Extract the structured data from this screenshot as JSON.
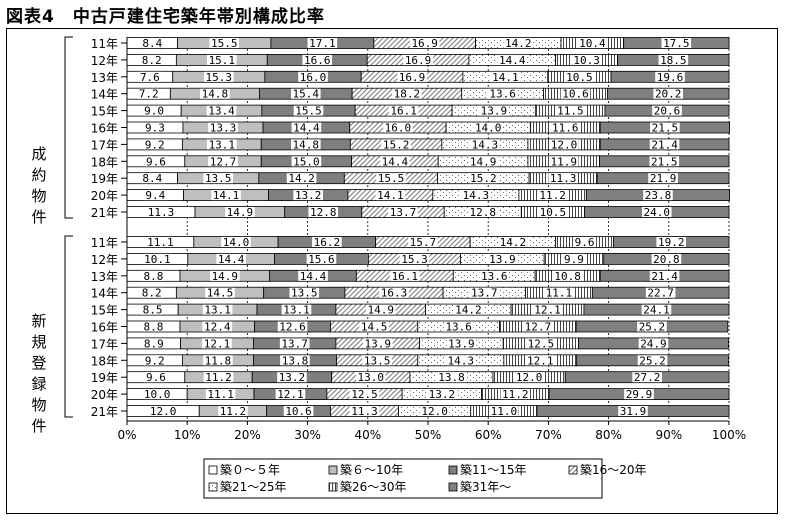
{
  "title": "図表4　中古戸建住宅築年帯別構成比率",
  "chart_data": {
    "type": "bar",
    "stacked": true,
    "orientation": "horizontal",
    "title": "図表4　中古戸建住宅築年帯別構成比率",
    "xlim": [
      0,
      100
    ],
    "x_ticks": [
      "0%",
      "10%",
      "20%",
      "30%",
      "40%",
      "50%",
      "60%",
      "70%",
      "80%",
      "90%",
      "100%"
    ],
    "series_names": [
      "築０～５年",
      "築６～10年",
      "築11～15年",
      "築16～20年",
      "築21～25年",
      "築26～30年",
      "築31年～"
    ],
    "groups": [
      {
        "label": "成約物件",
        "label_lines": [
          "成約",
          "物件"
        ],
        "rows": [
          {
            "year": "11年",
            "values": [
              8.4,
              15.5,
              17.1,
              16.9,
              14.2,
              10.4,
              17.5
            ]
          },
          {
            "year": "12年",
            "values": [
              8.2,
              15.1,
              16.6,
              16.9,
              14.4,
              10.3,
              18.5
            ]
          },
          {
            "year": "13年",
            "values": [
              7.6,
              15.3,
              16.0,
              16.9,
              14.1,
              10.5,
              19.6
            ]
          },
          {
            "year": "14年",
            "values": [
              7.2,
              14.8,
              15.4,
              18.2,
              13.6,
              10.6,
              20.2
            ]
          },
          {
            "year": "15年",
            "values": [
              9.0,
              13.4,
              15.5,
              16.1,
              13.9,
              11.5,
              20.6
            ]
          },
          {
            "year": "16年",
            "values": [
              9.3,
              13.3,
              14.4,
              16.0,
              14.0,
              11.6,
              21.5
            ]
          },
          {
            "year": "17年",
            "values": [
              9.2,
              13.1,
              14.8,
              15.2,
              14.3,
              12.0,
              21.4
            ]
          },
          {
            "year": "18年",
            "values": [
              9.6,
              12.7,
              15.0,
              14.4,
              14.9,
              11.9,
              21.5
            ]
          },
          {
            "year": "19年",
            "values": [
              8.4,
              13.5,
              14.2,
              15.5,
              15.2,
              11.3,
              21.9
            ]
          },
          {
            "year": "20年",
            "values": [
              9.4,
              14.1,
              13.2,
              14.1,
              14.3,
              11.2,
              23.8
            ]
          },
          {
            "year": "21年",
            "values": [
              11.3,
              14.9,
              12.8,
              13.7,
              12.8,
              10.5,
              24.0
            ]
          }
        ]
      },
      {
        "label": "新規登録物件",
        "label_lines": [
          "新規",
          "登録",
          "物件"
        ],
        "rows": [
          {
            "year": "11年",
            "values": [
              11.1,
              14.0,
              16.2,
              15.7,
              14.2,
              9.6,
              19.2
            ]
          },
          {
            "year": "12年",
            "values": [
              10.1,
              14.4,
              15.6,
              15.3,
              13.9,
              9.9,
              20.8
            ]
          },
          {
            "year": "13年",
            "values": [
              8.8,
              14.9,
              14.4,
              16.1,
              13.6,
              10.8,
              21.4
            ]
          },
          {
            "year": "14年",
            "values": [
              8.2,
              14.5,
              13.5,
              16.3,
              13.7,
              11.1,
              22.7
            ]
          },
          {
            "year": "15年",
            "values": [
              8.5,
              13.1,
              13.1,
              14.9,
              14.2,
              12.1,
              24.1
            ]
          },
          {
            "year": "16年",
            "values": [
              8.8,
              12.4,
              12.6,
              14.5,
              13.6,
              12.7,
              25.2
            ]
          },
          {
            "year": "17年",
            "values": [
              8.9,
              12.1,
              13.7,
              13.9,
              13.9,
              12.5,
              24.9
            ]
          },
          {
            "year": "18年",
            "values": [
              9.2,
              11.8,
              13.8,
              13.5,
              14.3,
              12.1,
              25.2
            ]
          },
          {
            "year": "19年",
            "values": [
              9.6,
              11.2,
              13.2,
              13.0,
              13.8,
              12.0,
              27.2
            ]
          },
          {
            "year": "20年",
            "values": [
              10.0,
              11.1,
              12.1,
              12.5,
              13.2,
              11.2,
              29.9
            ]
          },
          {
            "year": "21年",
            "values": [
              12.0,
              11.2,
              10.6,
              11.3,
              12.0,
              11.0,
              31.9
            ]
          }
        ]
      }
    ]
  }
}
